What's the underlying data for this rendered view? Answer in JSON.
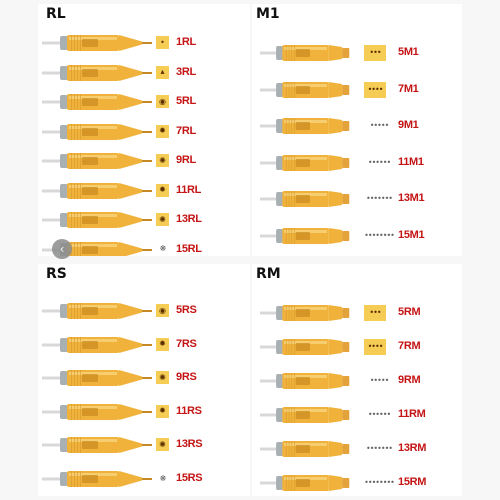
{
  "colors": {
    "cartridge": "#f0b23a",
    "swatch": "#f5cd55",
    "label": "#c41414"
  },
  "panels": [
    {
      "title": "RL",
      "variant": "taper",
      "items": [
        {
          "label": "1RL",
          "icon": "•",
          "swatch": true
        },
        {
          "label": "3RL",
          "icon": "▴",
          "swatch": true
        },
        {
          "label": "5RL",
          "icon": "◉",
          "swatch": true
        },
        {
          "label": "7RL",
          "icon": "✹",
          "swatch": true
        },
        {
          "label": "9RL",
          "icon": "✺",
          "swatch": true
        },
        {
          "label": "11RL",
          "icon": "✹",
          "swatch": true
        },
        {
          "label": "13RL",
          "icon": "✺",
          "swatch": true
        },
        {
          "label": "15RL",
          "icon": "❋",
          "swatch": false
        }
      ]
    },
    {
      "title": "M1",
      "variant": "flat",
      "items": [
        {
          "label": "5M1",
          "icon": "•••",
          "swatch": true
        },
        {
          "label": "7M1",
          "icon": "••••",
          "swatch": true
        },
        {
          "label": "9M1",
          "icon": "•••••",
          "swatch": false
        },
        {
          "label": "11M1",
          "icon": "••••••",
          "swatch": false
        },
        {
          "label": "13M1",
          "icon": "•••••••",
          "swatch": false
        },
        {
          "label": "15M1",
          "icon": "••••••••",
          "swatch": false
        }
      ]
    },
    {
      "title": "RS",
      "variant": "taper",
      "items": [
        {
          "label": "5RS",
          "icon": "◉",
          "swatch": true
        },
        {
          "label": "7RS",
          "icon": "✹",
          "swatch": true
        },
        {
          "label": "9RS",
          "icon": "✺",
          "swatch": true
        },
        {
          "label": "11RS",
          "icon": "✹",
          "swatch": true
        },
        {
          "label": "13RS",
          "icon": "✺",
          "swatch": true
        },
        {
          "label": "15RS",
          "icon": "❋",
          "swatch": false
        }
      ]
    },
    {
      "title": "RM",
      "variant": "flat",
      "items": [
        {
          "label": "5RM",
          "icon": "•••",
          "swatch": true
        },
        {
          "label": "7RM",
          "icon": "••••",
          "swatch": true
        },
        {
          "label": "9RM",
          "icon": "•••••",
          "swatch": false
        },
        {
          "label": "11RM",
          "icon": "••••••",
          "swatch": false
        },
        {
          "label": "13RM",
          "icon": "•••••••",
          "swatch": false
        },
        {
          "label": "15RM",
          "icon": "••••••••",
          "swatch": false
        }
      ]
    }
  ],
  "nav": {
    "icon": "left-arrow-icon",
    "glyph": "‹"
  }
}
